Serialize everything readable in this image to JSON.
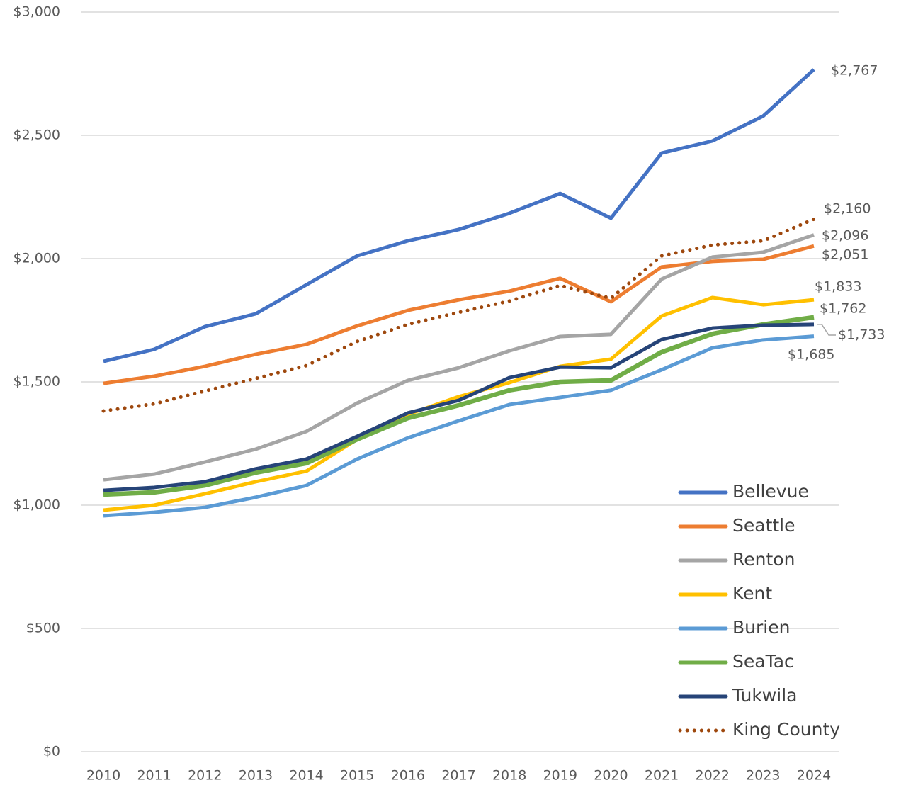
{
  "chart_data": {
    "type": "line",
    "categories": [
      "2010",
      "2011",
      "2012",
      "2013",
      "2014",
      "2015",
      "2016",
      "2017",
      "2018",
      "2019",
      "2020",
      "2021",
      "2022",
      "2023",
      "2024"
    ],
    "ylim": [
      0,
      3000
    ],
    "yticks": [
      {
        "value": 0,
        "label": "$0"
      },
      {
        "value": 500,
        "label": "$500"
      },
      {
        "value": 1000,
        "label": "$1,000"
      },
      {
        "value": 1500,
        "label": "$1,500"
      },
      {
        "value": 2000,
        "label": "$2,000"
      },
      {
        "value": 2500,
        "label": "$2,500"
      },
      {
        "value": 3000,
        "label": "$3,000"
      }
    ],
    "grid": true,
    "legend": "bottom-right",
    "series": [
      {
        "name": "Bellevue",
        "color": "#4472c4",
        "values": [
          1583,
          1632,
          1724,
          1776,
          1894,
          2011,
          2072,
          2118,
          2184,
          2264,
          2164,
          2428,
          2477,
          2578,
          2767
        ],
        "value_labels": [
          null,
          null,
          null,
          null,
          null,
          null,
          null,
          null,
          null,
          null,
          null,
          null,
          null,
          null,
          "$2,767"
        ]
      },
      {
        "name": "Seattle",
        "color": "#ed7d31",
        "values": [
          1494,
          1523,
          1563,
          1612,
          1652,
          1727,
          1790,
          1833,
          1868,
          1920,
          1825,
          1966,
          1989,
          1997,
          2051
        ],
        "value_labels": [
          null,
          null,
          null,
          null,
          null,
          null,
          null,
          null,
          null,
          null,
          null,
          null,
          null,
          null,
          "$2,051"
        ]
      },
      {
        "name": "Renton",
        "color": "#a5a5a5",
        "values": [
          1103,
          1126,
          1175,
          1227,
          1299,
          1414,
          1506,
          1557,
          1626,
          1684,
          1693,
          1917,
          2006,
          2026,
          2096
        ],
        "value_labels": [
          null,
          null,
          null,
          null,
          null,
          null,
          null,
          null,
          null,
          null,
          null,
          null,
          null,
          null,
          "$2,096"
        ]
      },
      {
        "name": "Kent",
        "color": "#ffc000",
        "values": [
          980,
          1000,
          1046,
          1095,
          1138,
          1267,
          1368,
          1440,
          1497,
          1563,
          1592,
          1767,
          1842,
          1813,
          1833
        ],
        "value_labels": [
          null,
          null,
          null,
          null,
          null,
          null,
          null,
          null,
          null,
          null,
          null,
          null,
          null,
          null,
          "$1,833"
        ]
      },
      {
        "name": "Burien",
        "color": "#5b9bd5",
        "values": [
          957,
          971,
          991,
          1032,
          1080,
          1187,
          1273,
          1342,
          1408,
          1437,
          1466,
          1549,
          1638,
          1670,
          1685
        ],
        "value_labels": [
          null,
          null,
          null,
          null,
          null,
          null,
          null,
          null,
          null,
          null,
          null,
          null,
          null,
          null,
          "$1,685"
        ]
      },
      {
        "name": "SeaTac",
        "color": "#70ad47",
        "values": [
          1043,
          1052,
          1080,
          1132,
          1170,
          1267,
          1353,
          1405,
          1466,
          1500,
          1506,
          1621,
          1695,
          1733,
          1762
        ],
        "value_labels": [
          null,
          null,
          null,
          null,
          null,
          null,
          null,
          null,
          null,
          null,
          null,
          null,
          null,
          null,
          "$1,762"
        ]
      },
      {
        "name": "Tukwila",
        "color": "#264478",
        "values": [
          1060,
          1072,
          1095,
          1147,
          1187,
          1279,
          1374,
          1425,
          1517,
          1560,
          1557,
          1672,
          1718,
          1730,
          1733
        ],
        "value_labels": [
          null,
          null,
          null,
          null,
          null,
          null,
          null,
          null,
          null,
          null,
          null,
          null,
          null,
          null,
          "$1,733"
        ]
      },
      {
        "name": "King County",
        "color": "#9e480e",
        "style": "dotted",
        "values": [
          1382,
          1411,
          1463,
          1514,
          1566,
          1664,
          1733,
          1782,
          1828,
          1891,
          1839,
          2011,
          2055,
          2072,
          2160
        ],
        "value_labels": [
          null,
          null,
          null,
          null,
          null,
          null,
          null,
          null,
          null,
          null,
          null,
          null,
          null,
          null,
          "$2,160"
        ]
      }
    ]
  }
}
